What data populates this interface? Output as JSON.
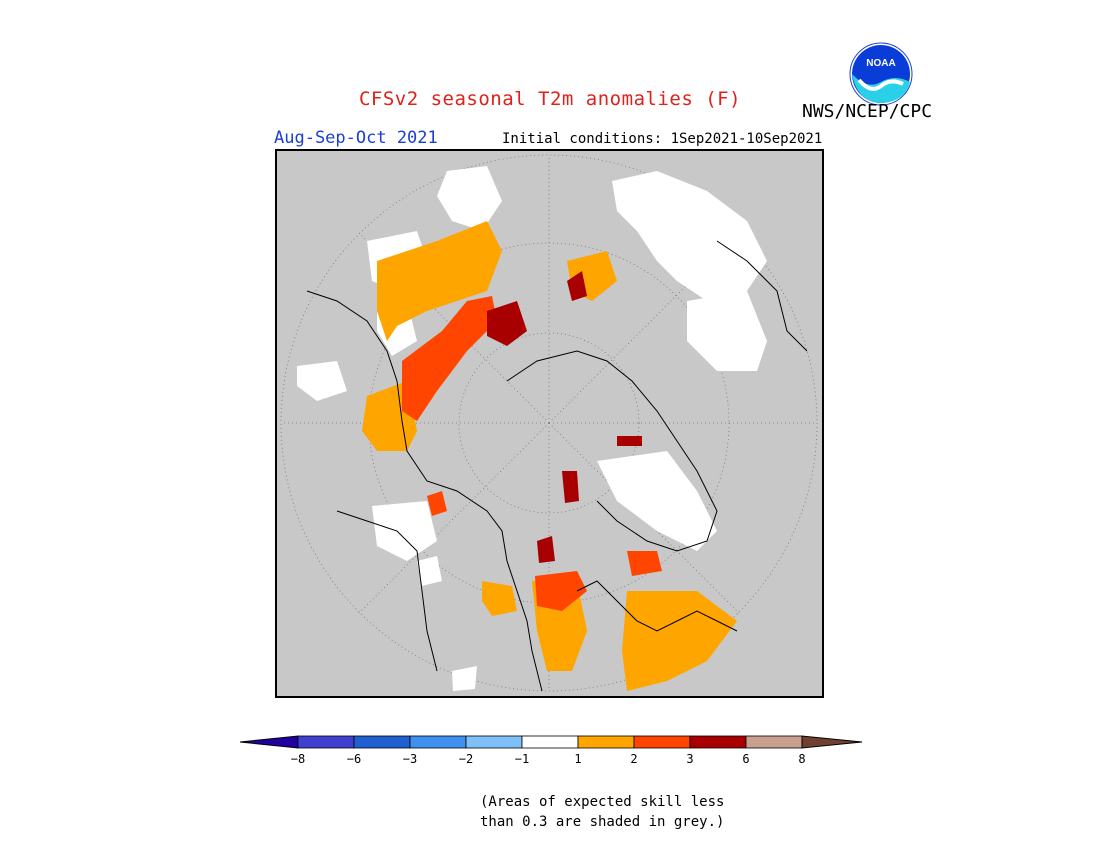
{
  "header": {
    "title": "CFSv2 seasonal T2m anomalies (F)",
    "agency": "NWS/NCEP/CPC",
    "season": "Aug-Sep-Oct 2021",
    "initial_conditions": "Initial conditions: 1Sep2021-10Sep2021",
    "logo_text": "NOAA"
  },
  "colors": {
    "title": "#e0201a",
    "season": "#1a3fd0",
    "ocean_grey": "#c8c8c8",
    "anomaly_1_2": "#ffa500",
    "anomaly_2_3": "#ff4500",
    "anomaly_3_6": "#a80000",
    "anomaly_neg1_1": "#ffffff",
    "anomaly_neg2_neg1": "#7fbfff"
  },
  "colorbar": {
    "colors": [
      "#2000a0",
      "#4040d0",
      "#2060d0",
      "#4090f0",
      "#80c0f8",
      "#ffffff",
      "#ffa500",
      "#ff4500",
      "#a80000",
      "#c8a090",
      "#704030"
    ],
    "labels": [
      "-8",
      "-6",
      "-3",
      "-2",
      "-1",
      "1",
      "2",
      "3",
      "6",
      "8"
    ]
  },
  "footnote": {
    "line1": "(Areas of expected skill less",
    "line2": "than 0.3 are shaded in grey.)"
  }
}
